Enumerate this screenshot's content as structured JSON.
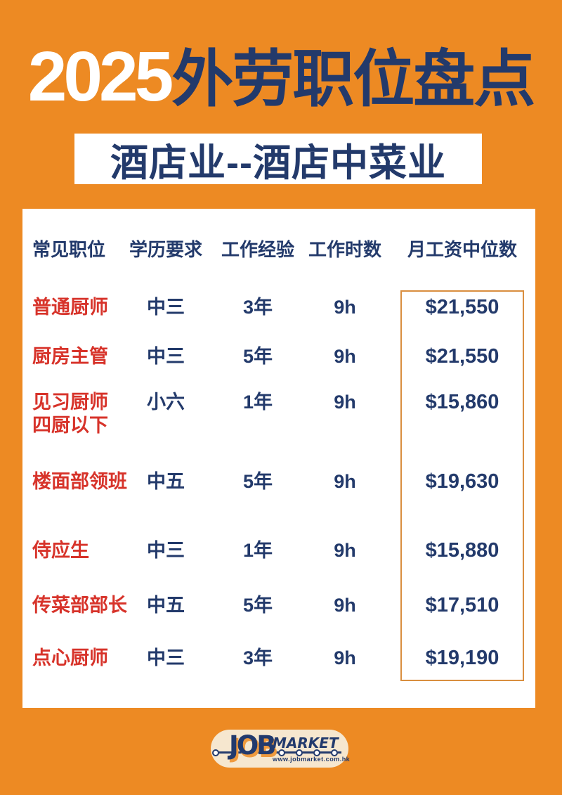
{
  "page": {
    "title_year": "2025",
    "title_text": "外劳职位盘点",
    "subtitle": "酒店业--酒店中菜业"
  },
  "table": {
    "headers": [
      "常见职位",
      "学历要求",
      "工作经验",
      "工作时数",
      "月工资中位数"
    ],
    "rows": [
      {
        "position": "普通厨师",
        "education": "中三",
        "experience": "3年",
        "hours": "9h",
        "salary": "$21,550"
      },
      {
        "position": "厨房主管",
        "education": "中三",
        "experience": "5年",
        "hours": "9h",
        "salary": "$21,550"
      },
      {
        "position": "见习厨师\n四厨以下",
        "education": "小六",
        "experience": "1年",
        "hours": "9h",
        "salary": "$15,860"
      },
      {
        "position": "楼面部领班",
        "education": "中五",
        "experience": "5年",
        "hours": "9h",
        "salary": "$19,630"
      },
      {
        "position": "侍应生",
        "education": "中三",
        "experience": "1年",
        "hours": "9h",
        "salary": "$15,880"
      },
      {
        "position": "传菜部部长",
        "education": "中五",
        "experience": "5年",
        "hours": "9h",
        "salary": "$17,510"
      },
      {
        "position": "点心厨师",
        "education": "中三",
        "experience": "3年",
        "hours": "9h",
        "salary": "$19,190"
      }
    ]
  },
  "footer": {
    "logo_job": "JOB",
    "logo_market": "MARKET",
    "logo_url": "www.jobmarket.com.hk"
  },
  "colors": {
    "background_orange": "#ED8A23",
    "navy": "#233A6B",
    "red": "#D7332A",
    "salary_box_border": "#D98E3F",
    "logo_cream": "#F6E7CF",
    "logo_shadow_orange": "#EF9A3E",
    "card_white": "#FFFFFF"
  }
}
